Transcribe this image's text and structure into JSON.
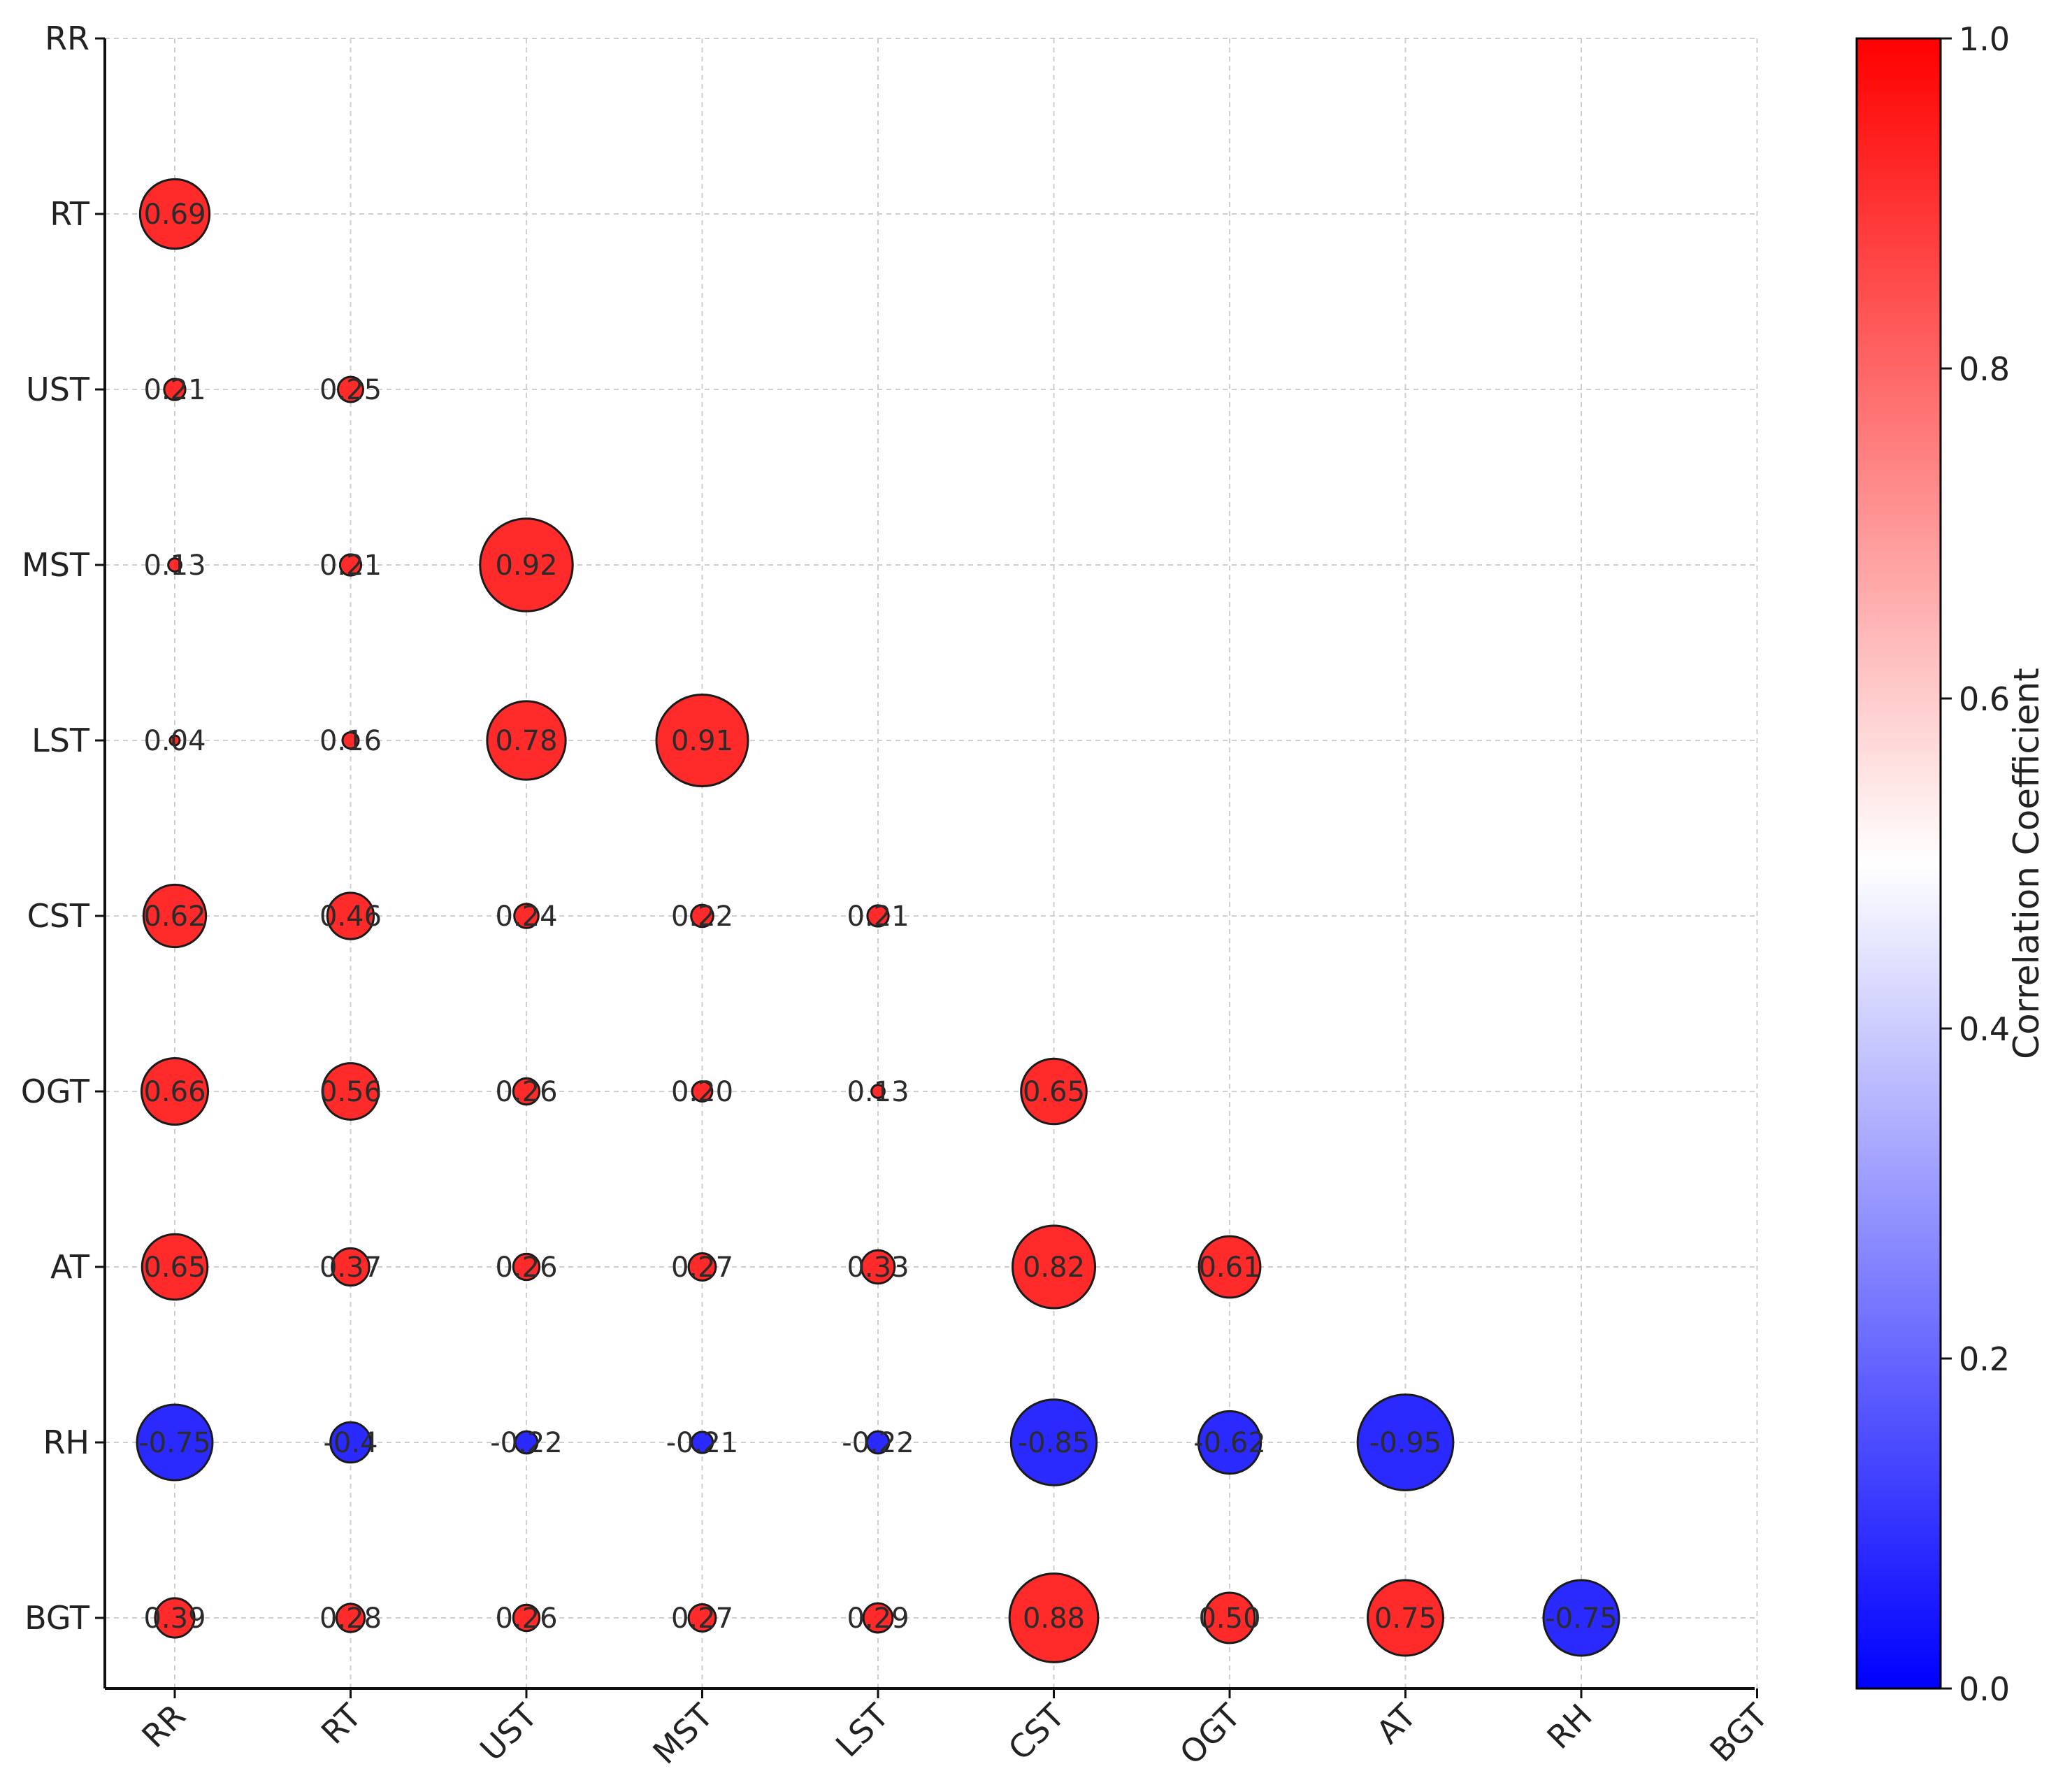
{
  "chart_data": {
    "type": "bubble-correlation-matrix",
    "title": "",
    "xlabel": "",
    "ylabel": "",
    "variables": [
      "RR",
      "RT",
      "UST",
      "MST",
      "LST",
      "CST",
      "OGT",
      "AT",
      "RH",
      "BGT"
    ],
    "grid": true,
    "cells": [
      {
        "row": "RT",
        "col": "RR",
        "value": 0.69,
        "label": "0.69"
      },
      {
        "row": "UST",
        "col": "RR",
        "value": 0.21,
        "label": "0.21"
      },
      {
        "row": "UST",
        "col": "RT",
        "value": 0.25,
        "label": "0.25"
      },
      {
        "row": "MST",
        "col": "RR",
        "value": 0.13,
        "label": "0.13"
      },
      {
        "row": "MST",
        "col": "RT",
        "value": 0.21,
        "label": "0.21"
      },
      {
        "row": "MST",
        "col": "UST",
        "value": 0.92,
        "label": "0.92"
      },
      {
        "row": "LST",
        "col": "RR",
        "value": 0.04,
        "label": "0.04"
      },
      {
        "row": "LST",
        "col": "RT",
        "value": 0.16,
        "label": "0.16"
      },
      {
        "row": "LST",
        "col": "UST",
        "value": 0.78,
        "label": "0.78"
      },
      {
        "row": "LST",
        "col": "MST",
        "value": 0.91,
        "label": "0.91"
      },
      {
        "row": "CST",
        "col": "RR",
        "value": 0.62,
        "label": "0.62"
      },
      {
        "row": "CST",
        "col": "RT",
        "value": 0.46,
        "label": "0.46"
      },
      {
        "row": "CST",
        "col": "UST",
        "value": 0.24,
        "label": "0.24"
      },
      {
        "row": "CST",
        "col": "MST",
        "value": 0.22,
        "label": "0.22"
      },
      {
        "row": "CST",
        "col": "LST",
        "value": 0.21,
        "label": "0.21"
      },
      {
        "row": "OGT",
        "col": "RR",
        "value": 0.66,
        "label": "0.66"
      },
      {
        "row": "OGT",
        "col": "RT",
        "value": 0.56,
        "label": "0.56"
      },
      {
        "row": "OGT",
        "col": "UST",
        "value": 0.26,
        "label": "0.26"
      },
      {
        "row": "OGT",
        "col": "MST",
        "value": 0.2,
        "label": "0.20"
      },
      {
        "row": "OGT",
        "col": "LST",
        "value": 0.13,
        "label": "0.13"
      },
      {
        "row": "OGT",
        "col": "CST",
        "value": 0.65,
        "label": "0.65"
      },
      {
        "row": "AT",
        "col": "RR",
        "value": 0.65,
        "label": "0.65"
      },
      {
        "row": "AT",
        "col": "RT",
        "value": 0.37,
        "label": "0.37"
      },
      {
        "row": "AT",
        "col": "UST",
        "value": 0.26,
        "label": "0.26"
      },
      {
        "row": "AT",
        "col": "MST",
        "value": 0.27,
        "label": "0.27"
      },
      {
        "row": "AT",
        "col": "LST",
        "value": 0.33,
        "label": "0.33"
      },
      {
        "row": "AT",
        "col": "CST",
        "value": 0.82,
        "label": "0.82"
      },
      {
        "row": "AT",
        "col": "OGT",
        "value": 0.61,
        "label": "0.61"
      },
      {
        "row": "RH",
        "col": "RR",
        "value": -0.75,
        "label": "-0.75"
      },
      {
        "row": "RH",
        "col": "RT",
        "value": -0.4,
        "label": "-0.4"
      },
      {
        "row": "RH",
        "col": "UST",
        "value": -0.22,
        "label": "-0.22"
      },
      {
        "row": "RH",
        "col": "MST",
        "value": -0.21,
        "label": "-0.21"
      },
      {
        "row": "RH",
        "col": "LST",
        "value": -0.22,
        "label": "-0.22"
      },
      {
        "row": "RH",
        "col": "CST",
        "value": -0.85,
        "label": "-0.85"
      },
      {
        "row": "RH",
        "col": "OGT",
        "value": -0.62,
        "label": "-0.62"
      },
      {
        "row": "RH",
        "col": "AT",
        "value": -0.95,
        "label": "-0.95"
      },
      {
        "row": "BGT",
        "col": "RR",
        "value": 0.39,
        "label": "0.39"
      },
      {
        "row": "BGT",
        "col": "RT",
        "value": 0.28,
        "label": "0.28"
      },
      {
        "row": "BGT",
        "col": "UST",
        "value": 0.26,
        "label": "0.26"
      },
      {
        "row": "BGT",
        "col": "MST",
        "value": 0.27,
        "label": "0.27"
      },
      {
        "row": "BGT",
        "col": "LST",
        "value": 0.29,
        "label": "0.29"
      },
      {
        "row": "BGT",
        "col": "CST",
        "value": 0.88,
        "label": "0.88"
      },
      {
        "row": "BGT",
        "col": "OGT",
        "value": 0.5,
        "label": "0.50"
      },
      {
        "row": "BGT",
        "col": "AT",
        "value": 0.75,
        "label": "0.75"
      },
      {
        "row": "BGT",
        "col": "RH",
        "value": -0.75,
        "label": "-0.75"
      }
    ],
    "colorbar": {
      "label": "Correlation Coefficient",
      "range": [
        0.0,
        1.0
      ],
      "ticks": [
        "0.0",
        "0.2",
        "0.4",
        "0.6",
        "0.8",
        "1.0"
      ],
      "colors": {
        "low": "#0000ff",
        "mid": "#ffffff",
        "high": "#ff0000"
      }
    },
    "marker_colors": {
      "positive": "#ff2a2a",
      "negative": "#2a2aff"
    }
  }
}
